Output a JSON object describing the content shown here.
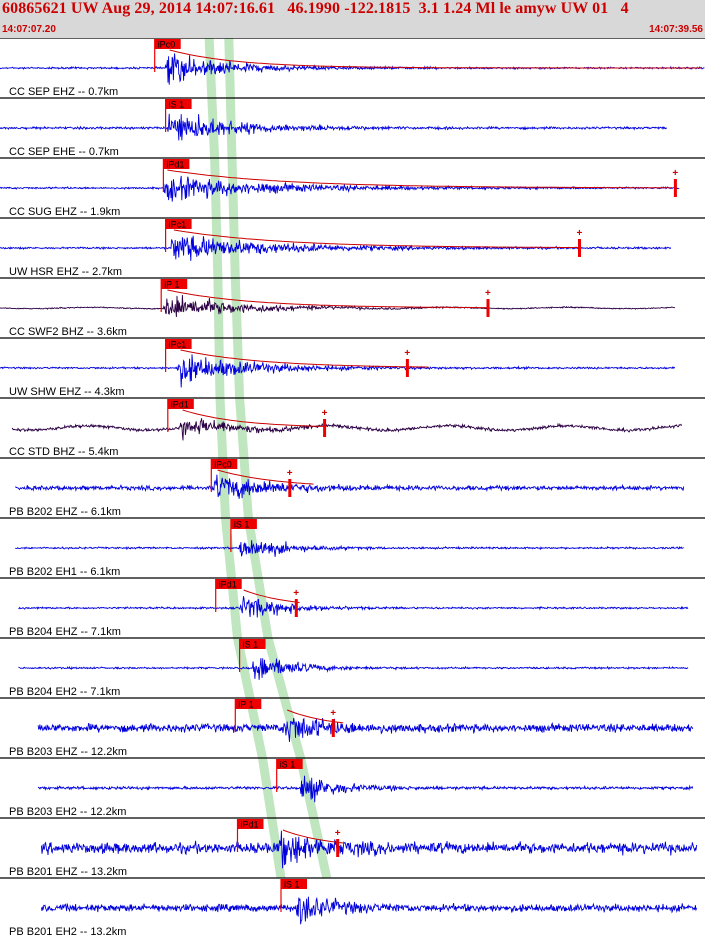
{
  "header": {
    "title": "60865621 UW Aug 29, 2014 14:07:16.61   46.1990 -122.1815  3.1 1.24 Ml le amyw UW 01   4",
    "start_time": "14:07:07.20",
    "end_time": "14:07:39.56"
  },
  "colors": {
    "header_bg": "#d8d8d8",
    "header_text": "#cc0000",
    "pick_flag": "#ee0000",
    "pick_window": "#bfe6bf",
    "trace_short_period": "#0000dd",
    "trace_broadband": "#2b0044",
    "coda_fit": "#cc0000",
    "separator": "#000000"
  },
  "chart_data": {
    "type": "seismogram",
    "time_axis": {
      "start": "14:07:07.20",
      "end": "14:07:39.56",
      "unit": "s",
      "duration": 32.36
    },
    "traces": [
      {
        "label": "CC SEP EHZ -- 0.7km",
        "kind": "short_period",
        "pick": "iPc0",
        "pick_time": 7.1,
        "onset_time": 7.6,
        "peak_amp": 0.9,
        "noise_amp": 0.05,
        "decay": 2.6,
        "data_start": 0.0,
        "data_end": 32.36,
        "fit_end": 32.36,
        "coda_mark_time": null
      },
      {
        "label": "CC SEP EHE -- 0.7km",
        "kind": "short_period",
        "pick": "iS 1",
        "pick_time": 7.6,
        "onset_time": 7.7,
        "peak_amp": 0.95,
        "noise_amp": 0.06,
        "decay": 2.8,
        "data_start": 0.0,
        "data_end": 30.6,
        "fit_end": null,
        "coda_mark_time": null
      },
      {
        "label": "CC SUG EHZ -- 1.9km",
        "kind": "short_period",
        "pick": "iPd1",
        "pick_time": 7.5,
        "onset_time": 7.5,
        "peak_amp": 0.7,
        "noise_amp": 0.05,
        "decay": 4.5,
        "data_start": 0.0,
        "data_end": 31.2,
        "fit_end": 30.9,
        "coda_mark_time": 31.0
      },
      {
        "label": "UW HSR EHZ -- 2.7km",
        "kind": "short_period",
        "pick": "iPc1",
        "pick_time": 7.6,
        "onset_time": 7.8,
        "peak_amp": 0.8,
        "noise_amp": 0.05,
        "decay": 4.2,
        "data_start": 0.0,
        "data_end": 30.8,
        "fit_end": 26.8,
        "coda_mark_time": 26.6
      },
      {
        "label": "CC SWF2 BHZ -- 3.6km",
        "kind": "broadband",
        "pick": "iP 1",
        "pick_time": 7.4,
        "onset_time": 7.5,
        "peak_amp": 0.75,
        "noise_amp": 0.03,
        "decay": 3.2,
        "data_start": 0.0,
        "data_end": 31.0,
        "fit_end": 22.5,
        "coda_mark_time": 22.4
      },
      {
        "label": "UW SHW EHZ -- 4.3km",
        "kind": "short_period",
        "pick": "iPc1",
        "pick_time": 7.6,
        "onset_time": 8.1,
        "peak_amp": 0.85,
        "noise_amp": 0.05,
        "decay": 3.2,
        "data_start": 0.0,
        "data_end": 31.0,
        "fit_end": 19.8,
        "coda_mark_time": 18.7
      },
      {
        "label": "CC STD BHZ -- 5.4km",
        "kind": "broadband",
        "pick": "iPd1",
        "pick_time": 7.7,
        "onset_time": 8.2,
        "peak_amp": 0.6,
        "noise_amp": 0.08,
        "decay": 2.2,
        "data_start": 0.55,
        "data_end": 31.3,
        "fit_end": 15.0,
        "coda_mark_time": 14.9
      },
      {
        "label": "PB B202 EHZ -- 6.1km",
        "kind": "short_period",
        "pick": "iPc0",
        "pick_time": 9.7,
        "onset_time": 9.8,
        "peak_amp": 0.75,
        "noise_amp": 0.12,
        "decay": 2.4,
        "data_start": 0.7,
        "data_end": 31.4,
        "fit_end": 14.5,
        "coda_mark_time": 13.3
      },
      {
        "label": "PB B202 EH1 -- 6.1km",
        "kind": "short_period",
        "pick": "iS 1",
        "pick_time": 10.6,
        "onset_time": 11.0,
        "peak_amp": 0.8,
        "noise_amp": 0.05,
        "decay": 1.7,
        "data_start": 0.7,
        "data_end": 31.4,
        "fit_end": null,
        "coda_mark_time": null
      },
      {
        "label": "PB B204 EHZ -- 7.1km",
        "kind": "short_period",
        "pick": "iPd1",
        "pick_time": 9.9,
        "onset_time": 11.0,
        "peak_amp": 0.75,
        "noise_amp": 0.05,
        "decay": 1.8,
        "data_start": 0.85,
        "data_end": 31.6,
        "fit_end": 13.8,
        "coda_mark_time": 13.6
      },
      {
        "label": "PB B204 EH2 -- 7.1km",
        "kind": "short_period",
        "pick": "iS 1",
        "pick_time": 11.0,
        "onset_time": 11.6,
        "peak_amp": 0.9,
        "noise_amp": 0.05,
        "decay": 1.6,
        "data_start": 0.85,
        "data_end": 31.6,
        "fit_end": null,
        "coda_mark_time": null
      },
      {
        "label": "PB B203 EHZ -- 12.2km",
        "kind": "short_period",
        "pick": "iP 1",
        "pick_time": 10.8,
        "onset_time": 13.0,
        "peak_amp": 0.85,
        "noise_amp": 0.22,
        "decay": 1.7,
        "data_start": 1.75,
        "data_end": 31.8,
        "fit_end": 15.9,
        "coda_mark_time": 15.3
      },
      {
        "label": "PB B203 EH2 -- 12.2km",
        "kind": "short_period",
        "pick": "iS 1",
        "pick_time": 12.7,
        "onset_time": 13.8,
        "peak_amp": 0.9,
        "noise_amp": 0.08,
        "decay": 1.4,
        "data_start": 1.75,
        "data_end": 31.8,
        "fit_end": null,
        "coda_mark_time": null
      },
      {
        "label": "PB B201 EHZ -- 13.2km",
        "kind": "short_period",
        "pick": "iPd1",
        "pick_time": 10.9,
        "onset_time": 12.8,
        "peak_amp": 0.85,
        "noise_amp": 0.3,
        "decay": 1.8,
        "data_start": 1.9,
        "data_end": 32.0,
        "fit_end": 15.9,
        "coda_mark_time": 15.5
      },
      {
        "label": "PB B201 EH2 -- 13.2km",
        "kind": "short_period",
        "pick": "iS 1",
        "pick_time": 12.9,
        "onset_time": 13.6,
        "peak_amp": 0.9,
        "noise_amp": 0.2,
        "decay": 1.4,
        "data_start": 1.9,
        "data_end": 32.0,
        "fit_end": null,
        "coda_mark_time": null
      }
    ],
    "pick_windows": [
      {
        "phase": "P",
        "path": [
          [
            9.6,
            0
          ],
          [
            9.85,
            2
          ],
          [
            10.0,
            4
          ],
          [
            10.1,
            6
          ],
          [
            10.35,
            8
          ],
          [
            10.9,
            10
          ],
          [
            12.05,
            12
          ],
          [
            12.9,
            14
          ]
        ]
      },
      {
        "phase": "S",
        "path": [
          [
            10.5,
            0
          ],
          [
            10.65,
            2
          ],
          [
            10.8,
            4
          ],
          [
            11.0,
            6
          ],
          [
            11.4,
            8
          ],
          [
            12.3,
            10
          ],
          [
            13.8,
            12
          ],
          [
            15.0,
            14
          ]
        ]
      }
    ],
    "coda_mark_symbol": "+"
  }
}
